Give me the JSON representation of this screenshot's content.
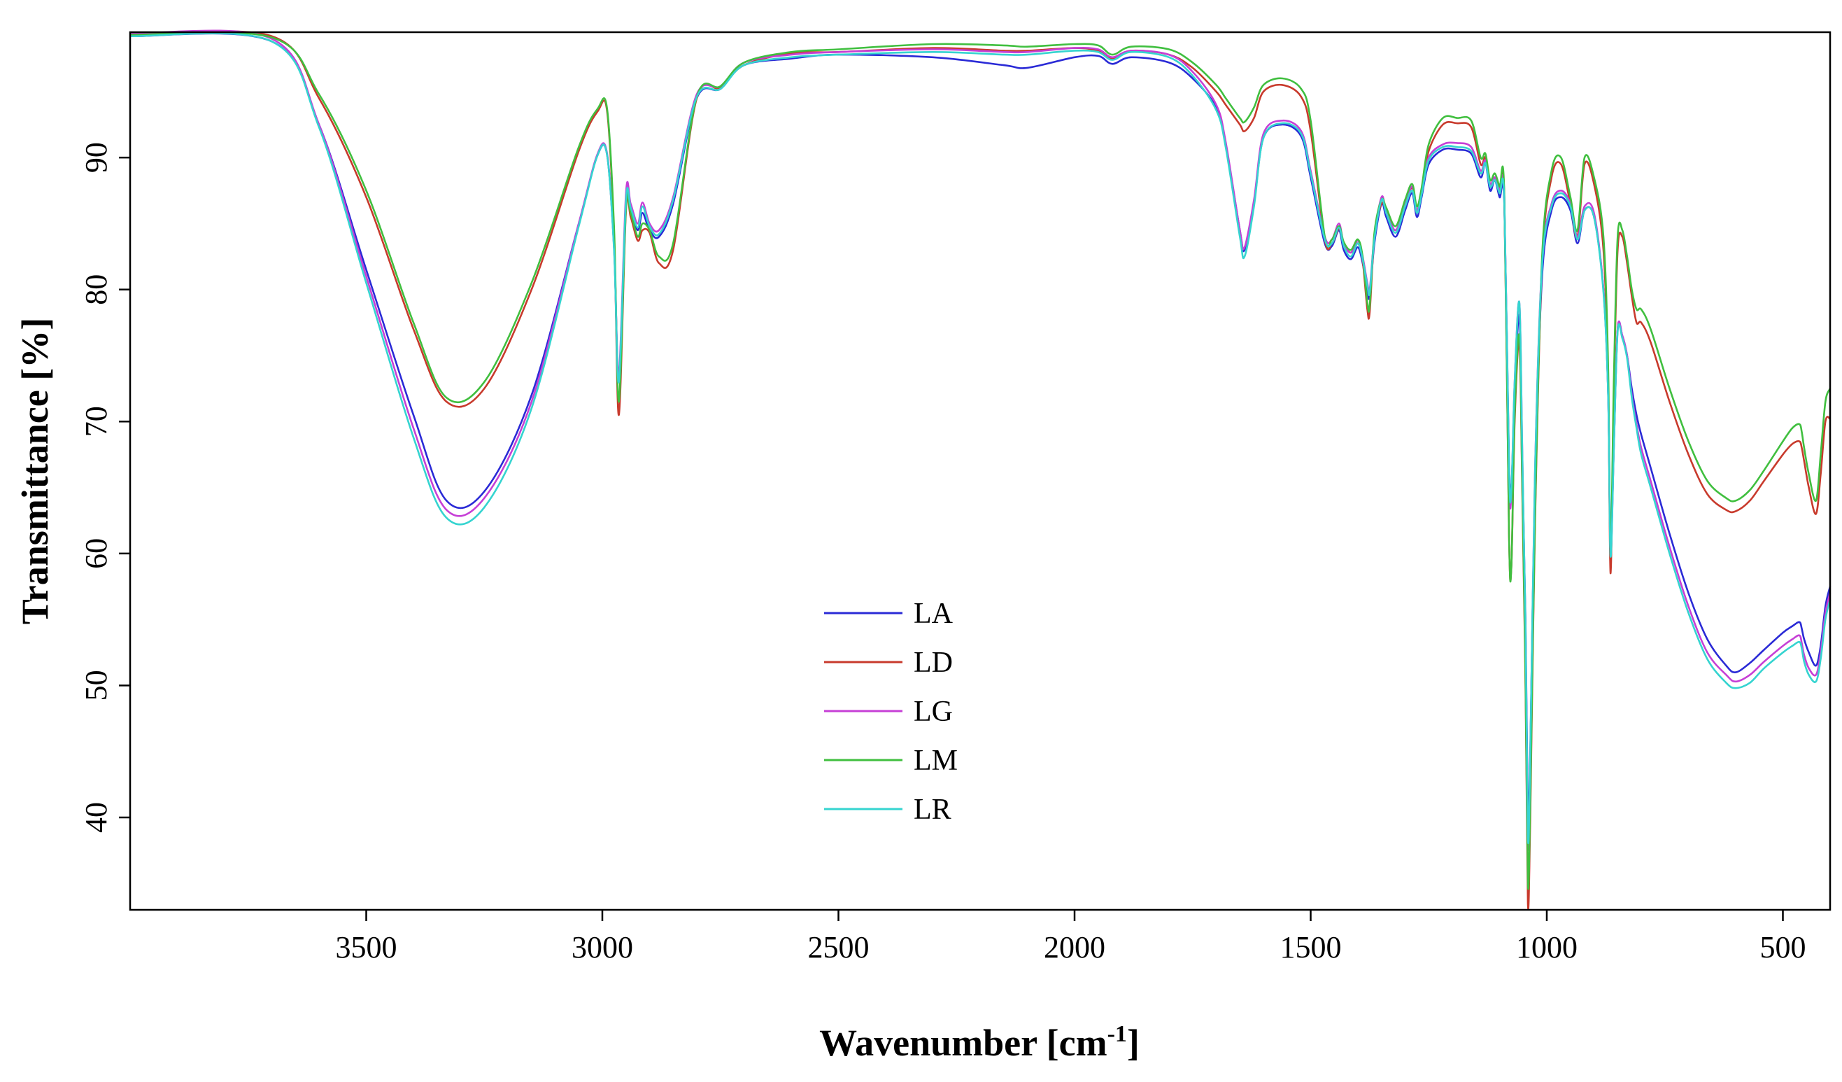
{
  "chart_data": {
    "type": "line",
    "title": "",
    "xlabel": "Wavenumber [cm",
    "xlabel_superscript": "-1",
    "xlabel_suffix": "]",
    "ylabel": "Transmittance [%]",
    "xlim": [
      4000,
      400
    ],
    "ylim": [
      33,
      99.5
    ],
    "x_reversed": true,
    "grid": false,
    "legend_position": "center-bottom",
    "x_ticks": [
      3500,
      3000,
      2500,
      2000,
      1500,
      1000,
      500
    ],
    "y_ticks": [
      40,
      50,
      60,
      70,
      80,
      90
    ],
    "series": [
      {
        "name": "LA",
        "color": "#2a2ad6",
        "x": [
          4000,
          3700,
          3600,
          3500,
          3400,
          3330,
          3250,
          3150,
          3050,
          3010,
          2990,
          2975,
          2965,
          2950,
          2940,
          2925,
          2915,
          2900,
          2880,
          2850,
          2800,
          2750,
          2700,
          2600,
          2500,
          2300,
          2150,
          2100,
          2000,
          1950,
          1920,
          1880,
          1800,
          1750,
          1700,
          1680,
          1650,
          1640,
          1620,
          1600,
          1560,
          1520,
          1500,
          1470,
          1455,
          1440,
          1430,
          1415,
          1400,
          1390,
          1380,
          1375,
          1365,
          1350,
          1340,
          1320,
          1300,
          1285,
          1275,
          1265,
          1250,
          1220,
          1190,
          1160,
          1140,
          1130,
          1120,
          1110,
          1100,
          1090,
          1080,
          1075,
          1068,
          1058,
          1052,
          1045,
          1040,
          1035,
          1025,
          1010,
          990,
          970,
          950,
          935,
          920,
          900,
          880,
          870,
          865,
          858,
          850,
          840,
          830,
          820,
          810,
          800,
          780,
          740,
          700,
          660,
          620,
          600,
          570,
          540,
          500,
          480,
          465,
          460,
          455,
          445,
          430,
          420,
          410,
          400
        ],
        "values": [
          99.2,
          98.8,
          92.5,
          81.5,
          70.5,
          64.0,
          64.7,
          72.0,
          85.0,
          90.2,
          90.2,
          83.0,
          73.2,
          86.5,
          86.0,
          84.5,
          85.8,
          84.5,
          84.0,
          86.5,
          94.5,
          95.2,
          97.0,
          97.5,
          97.8,
          97.6,
          97.0,
          96.8,
          97.6,
          97.7,
          97.1,
          97.6,
          97.2,
          96.0,
          93.8,
          91.0,
          84.5,
          83.0,
          86.5,
          91.5,
          92.5,
          91.6,
          88.5,
          83.5,
          83.3,
          84.5,
          83.0,
          82.3,
          83.2,
          82.0,
          80.0,
          79.5,
          83.5,
          86.5,
          85.5,
          84.0,
          86.0,
          87.3,
          85.5,
          87.0,
          89.5,
          90.6,
          90.6,
          90.3,
          88.5,
          89.6,
          87.5,
          88.3,
          87.0,
          86.5,
          67.0,
          65.0,
          72.0,
          78.0,
          67.0,
          55.0,
          40.0,
          45.0,
          65.0,
          81.0,
          86.0,
          87.0,
          86.0,
          83.5,
          86.0,
          85.5,
          80.0,
          72.0,
          60.5,
          68.0,
          77.0,
          76.5,
          75.0,
          72.5,
          70.5,
          69.0,
          66.5,
          61.5,
          57.0,
          53.5,
          51.5,
          51.0,
          51.7,
          52.7,
          54.0,
          54.5,
          54.8,
          54.3,
          53.5,
          52.5,
          51.5,
          53.0,
          56.0,
          57.5
        ]
      },
      {
        "name": "LD",
        "color": "#c83a2c",
        "x": [
          4000,
          3700,
          3600,
          3500,
          3400,
          3330,
          3250,
          3150,
          3050,
          3010,
          2990,
          2975,
          2965,
          2950,
          2940,
          2925,
          2915,
          2900,
          2880,
          2850,
          2800,
          2750,
          2700,
          2600,
          2500,
          2300,
          2150,
          2100,
          2000,
          1950,
          1920,
          1880,
          1800,
          1750,
          1700,
          1680,
          1650,
          1640,
          1620,
          1600,
          1560,
          1520,
          1500,
          1470,
          1455,
          1440,
          1430,
          1415,
          1400,
          1390,
          1380,
          1375,
          1365,
          1350,
          1340,
          1320,
          1300,
          1285,
          1275,
          1265,
          1250,
          1220,
          1190,
          1160,
          1140,
          1130,
          1120,
          1110,
          1100,
          1090,
          1080,
          1075,
          1068,
          1058,
          1052,
          1045,
          1040,
          1035,
          1025,
          1010,
          990,
          970,
          950,
          935,
          920,
          900,
          880,
          870,
          865,
          858,
          850,
          840,
          830,
          820,
          810,
          800,
          780,
          740,
          700,
          660,
          620,
          600,
          570,
          540,
          500,
          480,
          465,
          460,
          455,
          445,
          430,
          420,
          410,
          400
        ],
        "values": [
          99.3,
          99.2,
          94.5,
          87.0,
          77.0,
          71.5,
          72.5,
          80.0,
          90.5,
          93.5,
          93.5,
          84.0,
          70.5,
          86.0,
          85.5,
          83.7,
          84.5,
          84.3,
          82.0,
          83.0,
          94.5,
          95.3,
          97.0,
          97.9,
          98.0,
          98.3,
          98.1,
          98.1,
          98.3,
          98.1,
          97.5,
          98.1,
          97.8,
          96.8,
          95.0,
          94.0,
          92.5,
          92.0,
          93.0,
          95.0,
          95.5,
          94.6,
          92.0,
          83.8,
          83.5,
          84.6,
          83.5,
          82.8,
          83.5,
          82.2,
          78.5,
          78.3,
          84.0,
          86.5,
          86.0,
          84.5,
          86.5,
          87.7,
          86.0,
          87.5,
          90.5,
          92.5,
          92.6,
          92.3,
          89.5,
          90.0,
          88.0,
          88.5,
          87.5,
          87.0,
          61.5,
          59.0,
          70.0,
          76.0,
          65.0,
          50.0,
          33.5,
          40.0,
          62.0,
          82.0,
          88.5,
          89.5,
          86.5,
          84.0,
          89.5,
          88.0,
          83.0,
          73.0,
          58.5,
          72.0,
          83.0,
          84.0,
          82.0,
          79.5,
          77.5,
          77.5,
          76.0,
          71.5,
          67.5,
          64.5,
          63.3,
          63.2,
          64.0,
          65.5,
          67.5,
          68.3,
          68.5,
          68.0,
          67.0,
          65.0,
          63.0,
          66.0,
          70.0,
          70.2
        ]
      },
      {
        "name": "LG",
        "color": "#c63fd6",
        "x": [
          4000,
          3700,
          3600,
          3500,
          3400,
          3330,
          3250,
          3150,
          3050,
          3010,
          2990,
          2975,
          2965,
          2950,
          2940,
          2925,
          2915,
          2900,
          2880,
          2850,
          2800,
          2750,
          2700,
          2600,
          2500,
          2300,
          2150,
          2100,
          2000,
          1950,
          1920,
          1880,
          1800,
          1750,
          1700,
          1680,
          1650,
          1640,
          1620,
          1600,
          1560,
          1520,
          1500,
          1470,
          1455,
          1440,
          1430,
          1415,
          1400,
          1390,
          1380,
          1375,
          1365,
          1350,
          1340,
          1320,
          1300,
          1285,
          1275,
          1265,
          1250,
          1220,
          1190,
          1160,
          1140,
          1130,
          1120,
          1110,
          1100,
          1090,
          1080,
          1075,
          1068,
          1058,
          1052,
          1045,
          1040,
          1035,
          1025,
          1010,
          990,
          970,
          950,
          935,
          920,
          900,
          880,
          870,
          865,
          858,
          850,
          840,
          830,
          820,
          810,
          800,
          780,
          740,
          700,
          660,
          620,
          600,
          570,
          540,
          500,
          480,
          465,
          460,
          455,
          445,
          430,
          420,
          410,
          400
        ],
        "values": [
          99.4,
          99.0,
          92.5,
          81.0,
          69.5,
          63.3,
          64.2,
          71.5,
          85.0,
          90.3,
          90.3,
          83.0,
          73.5,
          87.3,
          86.5,
          85.0,
          86.6,
          85.0,
          84.5,
          87.0,
          94.8,
          95.4,
          97.2,
          97.8,
          98.0,
          98.2,
          98.0,
          98.0,
          98.3,
          98.2,
          97.6,
          98.1,
          97.8,
          96.5,
          94.0,
          91.2,
          84.5,
          83.2,
          86.8,
          91.8,
          92.8,
          92.0,
          89.0,
          84.0,
          83.8,
          85.0,
          83.5,
          82.8,
          83.7,
          82.5,
          80.5,
          80.0,
          84.0,
          87.0,
          86.0,
          84.5,
          86.5,
          87.8,
          86.0,
          87.4,
          90.0,
          91.0,
          91.1,
          90.8,
          89.0,
          89.8,
          88.0,
          88.5,
          87.5,
          87.0,
          66.0,
          64.5,
          73.0,
          79.0,
          68.0,
          54.0,
          38.0,
          44.0,
          66.0,
          82.0,
          86.5,
          87.5,
          86.5,
          84.0,
          86.3,
          85.8,
          80.0,
          72.0,
          60.0,
          68.0,
          77.0,
          76.5,
          75.0,
          72.0,
          69.8,
          68.0,
          65.5,
          60.5,
          56.0,
          52.5,
          50.8,
          50.3,
          50.8,
          51.8,
          53.0,
          53.5,
          53.8,
          53.2,
          52.3,
          51.3,
          50.8,
          52.5,
          55.5,
          57.0
        ]
      },
      {
        "name": "LM",
        "color": "#40bf3f",
        "x": [
          4000,
          3700,
          3600,
          3500,
          3400,
          3330,
          3250,
          3150,
          3050,
          3010,
          2990,
          2975,
          2965,
          2950,
          2940,
          2925,
          2915,
          2900,
          2880,
          2850,
          2800,
          2750,
          2700,
          2600,
          2500,
          2300,
          2150,
          2100,
          2000,
          1950,
          1920,
          1880,
          1800,
          1750,
          1700,
          1680,
          1650,
          1640,
          1620,
          1600,
          1560,
          1520,
          1500,
          1470,
          1455,
          1440,
          1430,
          1415,
          1400,
          1390,
          1380,
          1375,
          1365,
          1350,
          1340,
          1320,
          1300,
          1285,
          1275,
          1265,
          1250,
          1220,
          1190,
          1160,
          1140,
          1130,
          1120,
          1110,
          1100,
          1090,
          1080,
          1075,
          1068,
          1058,
          1052,
          1045,
          1040,
          1035,
          1025,
          1010,
          990,
          970,
          950,
          935,
          920,
          900,
          880,
          870,
          865,
          858,
          850,
          840,
          830,
          820,
          810,
          800,
          780,
          740,
          700,
          660,
          620,
          600,
          570,
          540,
          500,
          480,
          465,
          460,
          455,
          445,
          430,
          420,
          410,
          400
        ],
        "values": [
          99.3,
          99.1,
          94.8,
          87.5,
          77.5,
          71.8,
          73.0,
          80.5,
          90.8,
          93.7,
          93.7,
          84.5,
          71.5,
          86.2,
          85.8,
          84.0,
          85.0,
          84.5,
          82.5,
          83.5,
          94.6,
          95.4,
          97.2,
          98.0,
          98.2,
          98.6,
          98.5,
          98.4,
          98.6,
          98.5,
          97.8,
          98.4,
          98.2,
          97.2,
          95.5,
          94.5,
          93.0,
          92.7,
          93.8,
          95.5,
          96.0,
          95.2,
          92.8,
          84.0,
          83.8,
          84.8,
          83.6,
          83.0,
          83.8,
          82.5,
          79.0,
          78.8,
          84.3,
          86.8,
          86.2,
          84.8,
          86.8,
          88.0,
          86.3,
          87.7,
          91.0,
          93.0,
          93.0,
          92.8,
          90.0,
          90.3,
          88.3,
          88.8,
          87.8,
          87.3,
          61.5,
          59.0,
          70.5,
          76.5,
          65.5,
          50.5,
          35.0,
          41.0,
          62.5,
          82.5,
          89.0,
          90.0,
          87.0,
          84.5,
          90.0,
          88.5,
          84.0,
          74.0,
          60.0,
          73.0,
          84.0,
          84.5,
          82.5,
          80.0,
          78.5,
          78.5,
          77.0,
          72.5,
          68.5,
          65.5,
          64.2,
          64.0,
          64.8,
          66.3,
          68.5,
          69.5,
          69.8,
          69.2,
          68.0,
          66.0,
          64.0,
          67.5,
          71.5,
          72.5
        ]
      },
      {
        "name": "LR",
        "color": "#35d4d0",
        "x": [
          4000,
          3700,
          3600,
          3500,
          3400,
          3330,
          3250,
          3150,
          3050,
          3010,
          2990,
          2975,
          2965,
          2950,
          2940,
          2925,
          2915,
          2900,
          2880,
          2850,
          2800,
          2750,
          2700,
          2600,
          2500,
          2300,
          2150,
          2100,
          2000,
          1950,
          1920,
          1880,
          1800,
          1750,
          1700,
          1680,
          1650,
          1640,
          1620,
          1600,
          1560,
          1520,
          1500,
          1470,
          1455,
          1440,
          1430,
          1415,
          1400,
          1390,
          1380,
          1375,
          1365,
          1350,
          1340,
          1320,
          1300,
          1285,
          1275,
          1265,
          1250,
          1220,
          1190,
          1160,
          1140,
          1130,
          1120,
          1110,
          1100,
          1090,
          1080,
          1075,
          1068,
          1058,
          1052,
          1045,
          1040,
          1035,
          1025,
          1010,
          990,
          970,
          950,
          935,
          920,
          900,
          880,
          870,
          865,
          858,
          850,
          840,
          830,
          820,
          810,
          800,
          780,
          740,
          700,
          660,
          620,
          600,
          570,
          540,
          500,
          480,
          465,
          460,
          455,
          445,
          430,
          420,
          410,
          400
        ],
        "values": [
          99.2,
          98.8,
          92.3,
          80.5,
          68.8,
          62.7,
          63.5,
          71.0,
          84.8,
          90.2,
          90.2,
          82.8,
          73.0,
          86.8,
          86.2,
          84.7,
          86.3,
          84.8,
          84.2,
          86.8,
          94.6,
          95.2,
          97.0,
          97.6,
          97.8,
          98.0,
          97.8,
          97.8,
          98.1,
          98.0,
          97.4,
          98.0,
          97.6,
          96.2,
          93.6,
          90.8,
          84.0,
          82.5,
          86.3,
          91.5,
          92.6,
          91.8,
          88.8,
          83.8,
          83.5,
          84.7,
          83.3,
          82.5,
          83.5,
          82.3,
          80.3,
          79.8,
          83.8,
          86.8,
          85.8,
          84.3,
          86.3,
          87.5,
          85.8,
          87.2,
          89.8,
          90.8,
          90.8,
          90.5,
          88.8,
          89.6,
          87.8,
          88.3,
          87.3,
          86.8,
          66.5,
          64.8,
          73.0,
          79.0,
          68.0,
          54.5,
          38.5,
          44.5,
          66.0,
          81.8,
          86.3,
          87.3,
          86.3,
          83.8,
          86.0,
          85.5,
          79.8,
          71.8,
          59.8,
          67.8,
          76.8,
          76.3,
          74.8,
          71.8,
          69.5,
          67.5,
          65.0,
          60.0,
          55.5,
          52.0,
          50.2,
          49.8,
          50.2,
          51.3,
          52.5,
          53.0,
          53.3,
          52.8,
          51.8,
          50.8,
          50.3,
          52.0,
          55.0,
          56.5
        ]
      }
    ]
  }
}
